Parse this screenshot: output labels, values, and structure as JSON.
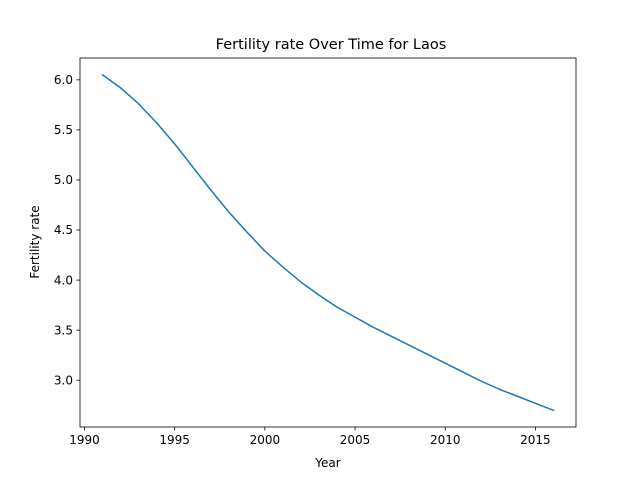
{
  "chart_data": {
    "type": "line",
    "title": "Fertility rate Over Time for Laos",
    "xlabel": "Year",
    "ylabel": "Fertility rate",
    "xlim": [
      1989.75,
      2017.25
    ],
    "ylim": [
      2.533,
      6.218
    ],
    "xticks": [
      1990,
      1995,
      2000,
      2005,
      2010,
      2015
    ],
    "yticks": [
      3.0,
      3.5,
      4.0,
      4.5,
      5.0,
      5.5,
      6.0
    ],
    "grid": false,
    "line_color": "#1f77b4",
    "series": [
      {
        "x": [
          1991,
          1992,
          1993,
          1994,
          1995,
          1996,
          1997,
          1998,
          1999,
          2000,
          2001,
          2002,
          2003,
          2004,
          2005,
          2006,
          2007,
          2008,
          2009,
          2010,
          2011,
          2012,
          2013,
          2014,
          2015,
          2016
        ],
        "values": [
          6.05,
          5.92,
          5.76,
          5.57,
          5.36,
          5.13,
          4.9,
          4.68,
          4.48,
          4.29,
          4.13,
          3.98,
          3.85,
          3.73,
          3.63,
          3.53,
          3.44,
          3.35,
          3.26,
          3.17,
          3.08,
          2.99,
          2.91,
          2.84,
          2.77,
          2.7
        ]
      }
    ]
  }
}
